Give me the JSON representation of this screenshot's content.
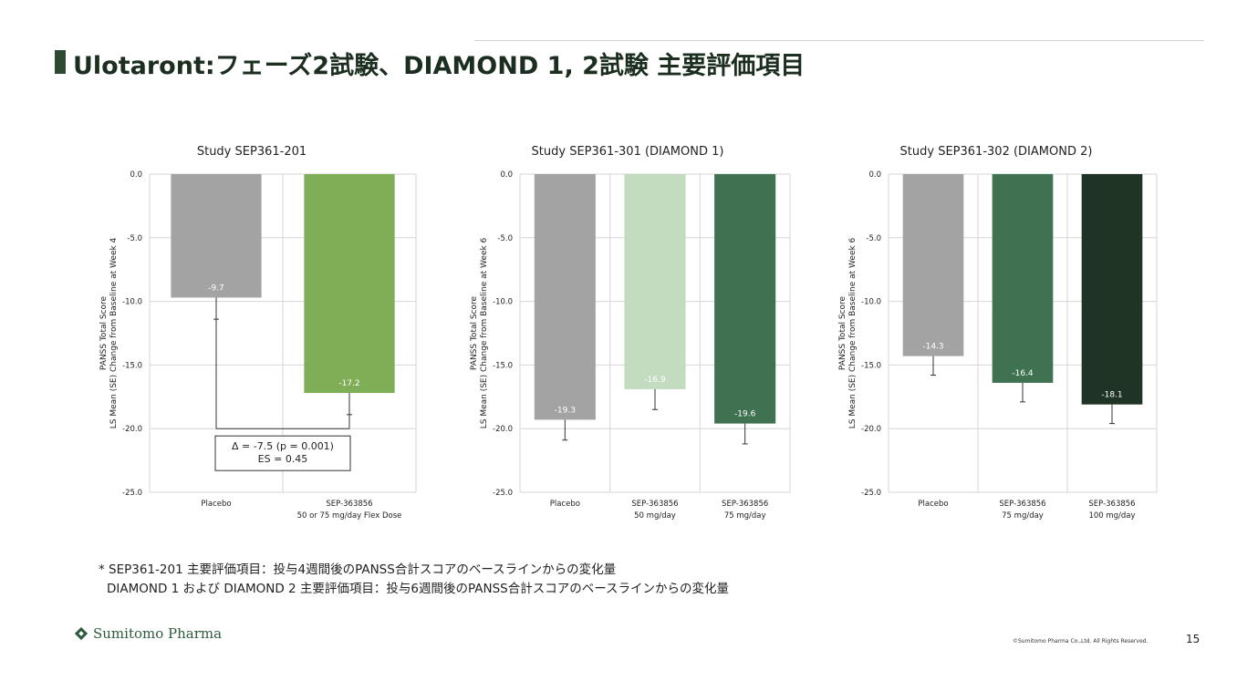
{
  "slide": {
    "title": "Ulotaront:フェーズ2試験、DIAMOND 1, 2試験 主要評価項目",
    "footnote_line1": "* SEP361-201 主要評価項目：投与4週間後のPANSS合計スコアのベースラインからの変化量",
    "footnote_line2": "DIAMOND 1 および DIAMOND 2 主要評価項目：投与6週間後のPANSS合計スコアのベースラインからの変化量",
    "logo_text": "Sumitomo Pharma",
    "copyright": "©Sumitomo Pharma Co.,Ltd. All Rights Reserved.",
    "page_number": "15",
    "colors": {
      "title_dark": "#1b2e1f",
      "logo_green": "#2d5a3a"
    }
  },
  "chart_data": [
    {
      "type": "bar",
      "title": "Study SEP361-201",
      "ylabel_lines": [
        "PANSS Total Score",
        "LS Mean (SE) Change from Baseline at Week 4"
      ],
      "ylim": [
        -25,
        0
      ],
      "yticks": [
        "0.0",
        "-5.0",
        "-10.0",
        "-15.0",
        "-20.0",
        "-25.0"
      ],
      "grid": true,
      "categories": [
        [
          "Placebo"
        ],
        [
          "SEP-363856",
          "50 or 75 mg/day Flex Dose"
        ]
      ],
      "values": [
        -9.7,
        -17.2
      ],
      "errors": [
        1.7,
        1.7
      ],
      "value_labels": [
        "-9.7",
        "-17.2"
      ],
      "colors": [
        "#a3a3a3",
        "#7fae57"
      ],
      "annotation_lines": [
        "Δ = -7.5 (p = 0.001)",
        "ES = 0.45"
      ]
    },
    {
      "type": "bar",
      "title": "Study SEP361-301 (DIAMOND 1)",
      "ylabel_lines": [
        "PANSS Total Score",
        "LS Mean (SE) Change from Baseline at Week 6"
      ],
      "ylim": [
        -25,
        0
      ],
      "yticks": [
        "0.0",
        "-5.0",
        "-10.0",
        "-15.0",
        "-20.0",
        "-25.0"
      ],
      "grid": true,
      "categories": [
        [
          "Placebo"
        ],
        [
          "SEP-363856",
          "50 mg/day"
        ],
        [
          "SEP-363856",
          "75 mg/day"
        ]
      ],
      "values": [
        -19.3,
        -16.9,
        -19.6
      ],
      "errors": [
        1.6,
        1.6,
        1.6
      ],
      "value_labels": [
        "-19.3",
        "-16.9",
        "-19.6"
      ],
      "colors": [
        "#a3a3a3",
        "#c3dcc0",
        "#3e7250"
      ]
    },
    {
      "type": "bar",
      "title": "Study SEP361-302 (DIAMOND 2)",
      "ylabel_lines": [
        "PANSS Total Score",
        "LS Mean (SE) Change from Baseline at Week 6"
      ],
      "ylim": [
        -25,
        0
      ],
      "yticks": [
        "0.0",
        "-5.0",
        "-10.0",
        "-15.0",
        "-20.0",
        "-25.0"
      ],
      "grid": true,
      "categories": [
        [
          "Placebo"
        ],
        [
          "SEP-363856",
          "75 mg/day"
        ],
        [
          "SEP-363856",
          "100 mg/day"
        ]
      ],
      "values": [
        -14.3,
        -16.4,
        -18.1
      ],
      "errors": [
        1.5,
        1.5,
        1.5
      ],
      "value_labels": [
        "-14.3",
        "-16.4",
        "-18.1"
      ],
      "colors": [
        "#a3a3a3",
        "#3e7250",
        "#1f3424"
      ]
    }
  ]
}
